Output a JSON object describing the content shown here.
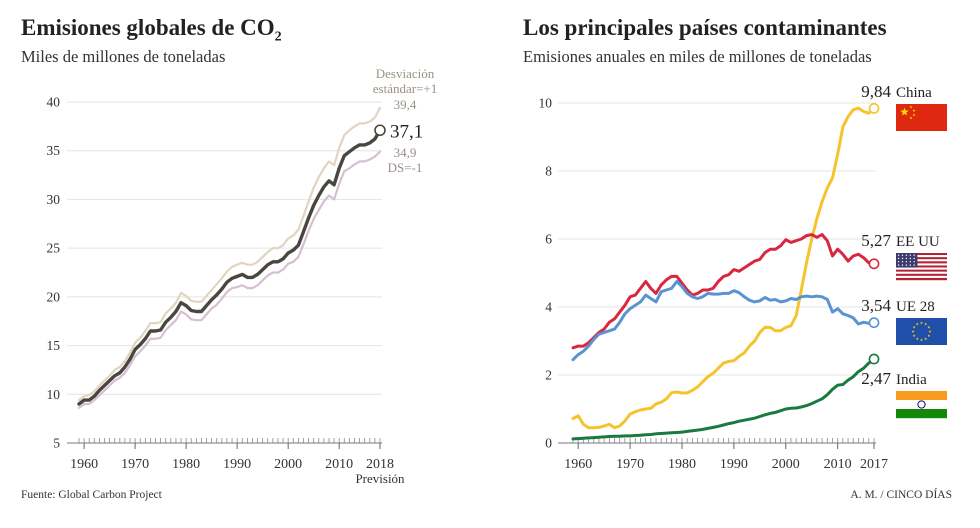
{
  "chart_data": [
    {
      "type": "line",
      "title": "Emisiones globales de CO",
      "title_subscript": "2",
      "subtitle": "Miles de millones de toneladas",
      "ylim": [
        5,
        40
      ],
      "xlim": [
        1959,
        2018
      ],
      "y_ticks": [
        "5",
        "10",
        "15",
        "20",
        "25",
        "30",
        "35",
        "40"
      ],
      "x_ticks": [
        "1960",
        "1970",
        "1980",
        "1990",
        "2000",
        "2010",
        "2018"
      ],
      "x_note": "Previsión",
      "upper_label_1": "Desviación",
      "upper_label_2": "estándar=+1",
      "upper_value": "39,4",
      "central_value": "37,1",
      "lower_value": "34,9",
      "lower_label": "DS=-1",
      "colors": {
        "central": "#48463f",
        "upper": "#e1d4c0",
        "lower": "#d6bfd2"
      },
      "series": [
        {
          "name": "central",
          "x": [
            1959,
            1960,
            1961,
            1962,
            1963,
            1964,
            1965,
            1966,
            1967,
            1968,
            1969,
            1970,
            1971,
            1972,
            1973,
            1974,
            1975,
            1976,
            1977,
            1978,
            1979,
            1980,
            1981,
            1982,
            1983,
            1984,
            1985,
            1986,
            1987,
            1988,
            1989,
            1990,
            1991,
            1992,
            1993,
            1994,
            1995,
            1996,
            1997,
            1998,
            1999,
            2000,
            2001,
            2002,
            2003,
            2004,
            2005,
            2006,
            2007,
            2008,
            2009,
            2010,
            2011,
            2012,
            2013,
            2014,
            2015,
            2016,
            2017,
            2018
          ],
          "values": [
            9.0,
            9.4,
            9.4,
            9.8,
            10.4,
            10.9,
            11.4,
            11.9,
            12.2,
            12.8,
            13.6,
            14.6,
            15.1,
            15.7,
            16.5,
            16.5,
            16.6,
            17.4,
            17.9,
            18.5,
            19.4,
            19.1,
            18.6,
            18.5,
            18.5,
            19.1,
            19.7,
            20.2,
            20.8,
            21.5,
            21.9,
            22.1,
            22.3,
            22.0,
            22.0,
            22.3,
            22.8,
            23.3,
            23.6,
            23.6,
            23.9,
            24.5,
            24.8,
            25.3,
            26.7,
            28.1,
            29.4,
            30.4,
            31.3,
            31.9,
            31.5,
            33.2,
            34.5,
            34.9,
            35.3,
            35.6,
            35.6,
            35.8,
            36.2,
            37.1
          ]
        },
        {
          "name": "upper",
          "x": [
            1959,
            1960,
            1961,
            1962,
            1963,
            1964,
            1965,
            1966,
            1967,
            1968,
            1969,
            1970,
            1971,
            1972,
            1973,
            1974,
            1975,
            1976,
            1977,
            1978,
            1979,
            1980,
            1981,
            1982,
            1983,
            1984,
            1985,
            1986,
            1987,
            1988,
            1989,
            1990,
            1991,
            1992,
            1993,
            1994,
            1995,
            1996,
            1997,
            1998,
            1999,
            2000,
            2001,
            2002,
            2003,
            2004,
            2005,
            2006,
            2007,
            2008,
            2009,
            2010,
            2011,
            2012,
            2013,
            2014,
            2015,
            2016,
            2017,
            2018
          ],
          "values": [
            9.4,
            9.8,
            9.9,
            10.3,
            10.9,
            11.4,
            11.9,
            12.5,
            12.8,
            13.4,
            14.3,
            15.3,
            15.8,
            16.5,
            17.3,
            17.3,
            17.4,
            18.3,
            18.8,
            19.4,
            20.4,
            20.1,
            19.6,
            19.5,
            19.5,
            20.1,
            20.7,
            21.3,
            21.9,
            22.6,
            23.1,
            23.3,
            23.5,
            23.3,
            23.3,
            23.6,
            24.1,
            24.6,
            25.0,
            25.0,
            25.3,
            26.0,
            26.3,
            26.9,
            28.3,
            29.8,
            31.2,
            32.3,
            33.2,
            33.9,
            33.5,
            35.3,
            36.6,
            37.1,
            37.5,
            37.8,
            37.8,
            38.0,
            38.4,
            39.4
          ]
        },
        {
          "name": "lower",
          "x": [
            1959,
            1960,
            1961,
            1962,
            1963,
            1964,
            1965,
            1966,
            1967,
            1968,
            1969,
            1970,
            1971,
            1972,
            1973,
            1974,
            1975,
            1976,
            1977,
            1978,
            1979,
            1980,
            1981,
            1982,
            1983,
            1984,
            1985,
            1986,
            1987,
            1988,
            1989,
            1990,
            1991,
            1992,
            1993,
            1994,
            1995,
            1996,
            1997,
            1998,
            1999,
            2000,
            2001,
            2002,
            2003,
            2004,
            2005,
            2006,
            2007,
            2008,
            2009,
            2010,
            2011,
            2012,
            2013,
            2014,
            2015,
            2016,
            2017,
            2018
          ],
          "values": [
            8.6,
            9.0,
            9.0,
            9.4,
            9.9,
            10.4,
            10.9,
            11.4,
            11.7,
            12.2,
            13.0,
            13.9,
            14.4,
            15.0,
            15.7,
            15.7,
            15.8,
            16.6,
            17.1,
            17.6,
            18.5,
            18.2,
            17.7,
            17.6,
            17.6,
            18.2,
            18.8,
            19.2,
            19.8,
            20.5,
            20.9,
            21.0,
            21.2,
            20.9,
            20.9,
            21.2,
            21.7,
            22.2,
            22.5,
            22.5,
            22.8,
            23.4,
            23.6,
            24.1,
            25.4,
            26.8,
            28.0,
            28.9,
            29.8,
            30.4,
            30.0,
            31.6,
            32.9,
            33.2,
            33.6,
            33.9,
            33.9,
            34.1,
            34.4,
            34.9
          ]
        }
      ]
    },
    {
      "type": "line",
      "title": "Los principales países contaminantes",
      "subtitle": "Emisiones anuales en miles de millones de toneladas",
      "ylim": [
        0,
        10
      ],
      "xlim": [
        1959,
        2017
      ],
      "y_ticks": [
        "0",
        "2",
        "4",
        "6",
        "8",
        "10"
      ],
      "x_ticks": [
        "1960",
        "1970",
        "1980",
        "1990",
        "2000",
        "2010",
        "2017"
      ],
      "series": [
        {
          "name": "China",
          "end_value": "9,84",
          "color": "#f5c32c",
          "flag": "china-flag",
          "x": [
            1959,
            1960,
            1961,
            1962,
            1963,
            1964,
            1965,
            1966,
            1967,
            1968,
            1969,
            1970,
            1971,
            1972,
            1973,
            1974,
            1975,
            1976,
            1977,
            1978,
            1979,
            1980,
            1981,
            1982,
            1983,
            1984,
            1985,
            1986,
            1987,
            1988,
            1989,
            1990,
            1991,
            1992,
            1993,
            1994,
            1995,
            1996,
            1997,
            1998,
            1999,
            2000,
            2001,
            2002,
            2003,
            2004,
            2005,
            2006,
            2007,
            2008,
            2009,
            2010,
            2011,
            2012,
            2013,
            2014,
            2015,
            2016,
            2017
          ],
          "values": [
            0.72,
            0.8,
            0.55,
            0.45,
            0.45,
            0.46,
            0.5,
            0.55,
            0.45,
            0.5,
            0.65,
            0.85,
            0.92,
            0.97,
            1.0,
            1.02,
            1.15,
            1.2,
            1.3,
            1.48,
            1.5,
            1.47,
            1.47,
            1.55,
            1.65,
            1.8,
            1.95,
            2.05,
            2.2,
            2.35,
            2.4,
            2.42,
            2.55,
            2.65,
            2.85,
            3.0,
            3.25,
            3.4,
            3.4,
            3.3,
            3.3,
            3.4,
            3.45,
            3.75,
            4.5,
            5.3,
            6.0,
            6.6,
            7.1,
            7.5,
            7.8,
            8.5,
            9.3,
            9.6,
            9.8,
            9.85,
            9.75,
            9.7,
            9.84
          ]
        },
        {
          "name": "EE UU",
          "end_value": "5,27",
          "color": "#d7283f",
          "flag": "usa-flag",
          "x": [
            1959,
            1960,
            1961,
            1962,
            1963,
            1964,
            1965,
            1966,
            1967,
            1968,
            1969,
            1970,
            1971,
            1972,
            1973,
            1974,
            1975,
            1976,
            1977,
            1978,
            1979,
            1980,
            1981,
            1982,
            1983,
            1984,
            1985,
            1986,
            1987,
            1988,
            1989,
            1990,
            1991,
            1992,
            1993,
            1994,
            1995,
            1996,
            1997,
            1998,
            1999,
            2000,
            2001,
            2002,
            2003,
            2004,
            2005,
            2006,
            2007,
            2008,
            2009,
            2010,
            2011,
            2012,
            2013,
            2014,
            2015,
            2016,
            2017
          ],
          "values": [
            2.8,
            2.85,
            2.85,
            2.95,
            3.1,
            3.25,
            3.35,
            3.55,
            3.65,
            3.85,
            4.05,
            4.3,
            4.35,
            4.55,
            4.75,
            4.55,
            4.4,
            4.65,
            4.8,
            4.9,
            4.9,
            4.7,
            4.5,
            4.35,
            4.4,
            4.5,
            4.5,
            4.55,
            4.75,
            4.9,
            4.95,
            5.1,
            5.05,
            5.15,
            5.25,
            5.35,
            5.4,
            5.6,
            5.7,
            5.7,
            5.8,
            5.98,
            5.9,
            5.95,
            6.0,
            6.1,
            6.13,
            6.05,
            6.13,
            5.95,
            5.5,
            5.7,
            5.55,
            5.35,
            5.5,
            5.55,
            5.45,
            5.3,
            5.27
          ]
        },
        {
          "name": "UE 28",
          "end_value": "3,54",
          "color": "#5a93d1",
          "flag": "eu-flag",
          "x": [
            1959,
            1960,
            1961,
            1962,
            1963,
            1964,
            1965,
            1966,
            1967,
            1968,
            1969,
            1970,
            1971,
            1972,
            1973,
            1974,
            1975,
            1976,
            1977,
            1978,
            1979,
            1980,
            1981,
            1982,
            1983,
            1984,
            1985,
            1986,
            1987,
            1988,
            1989,
            1990,
            1991,
            1992,
            1993,
            1994,
            1995,
            1996,
            1997,
            1998,
            1999,
            2000,
            2001,
            2002,
            2003,
            2004,
            2005,
            2006,
            2007,
            2008,
            2009,
            2010,
            2011,
            2012,
            2013,
            2014,
            2015,
            2016,
            2017
          ],
          "values": [
            2.45,
            2.6,
            2.7,
            2.85,
            3.05,
            3.2,
            3.25,
            3.3,
            3.35,
            3.55,
            3.8,
            3.95,
            4.05,
            4.15,
            4.35,
            4.25,
            4.15,
            4.45,
            4.5,
            4.55,
            4.75,
            4.6,
            4.4,
            4.3,
            4.25,
            4.3,
            4.4,
            4.38,
            4.38,
            4.4,
            4.4,
            4.48,
            4.42,
            4.3,
            4.2,
            4.15,
            4.18,
            4.28,
            4.2,
            4.22,
            4.15,
            4.18,
            4.25,
            4.22,
            4.3,
            4.32,
            4.3,
            4.32,
            4.3,
            4.22,
            3.85,
            3.95,
            3.8,
            3.75,
            3.68,
            3.5,
            3.55,
            3.52,
            3.54
          ]
        },
        {
          "name": "India",
          "end_value": "2,47",
          "color": "#197a40",
          "flag": "india-flag",
          "x": [
            1959,
            1960,
            1961,
            1962,
            1963,
            1964,
            1965,
            1966,
            1967,
            1968,
            1969,
            1970,
            1971,
            1972,
            1973,
            1974,
            1975,
            1976,
            1977,
            1978,
            1979,
            1980,
            1981,
            1982,
            1983,
            1984,
            1985,
            1986,
            1987,
            1988,
            1989,
            1990,
            1991,
            1992,
            1993,
            1994,
            1995,
            1996,
            1997,
            1998,
            1999,
            2000,
            2001,
            2002,
            2003,
            2004,
            2005,
            2006,
            2007,
            2008,
            2009,
            2010,
            2011,
            2012,
            2013,
            2014,
            2015,
            2016,
            2017
          ],
          "values": [
            0.12,
            0.13,
            0.14,
            0.15,
            0.16,
            0.17,
            0.18,
            0.19,
            0.2,
            0.2,
            0.21,
            0.21,
            0.22,
            0.23,
            0.24,
            0.25,
            0.27,
            0.28,
            0.29,
            0.3,
            0.31,
            0.32,
            0.34,
            0.36,
            0.38,
            0.4,
            0.43,
            0.46,
            0.49,
            0.53,
            0.57,
            0.6,
            0.64,
            0.67,
            0.7,
            0.73,
            0.78,
            0.83,
            0.87,
            0.9,
            0.95,
            1.0,
            1.02,
            1.03,
            1.06,
            1.1,
            1.16,
            1.23,
            1.3,
            1.42,
            1.58,
            1.7,
            1.72,
            1.85,
            1.95,
            2.1,
            2.2,
            2.35,
            2.47
          ]
        }
      ]
    }
  ],
  "footer": {
    "source": "Fuente: Global Carbon Project",
    "credit": "A. M. / CINCO DÍAS"
  }
}
